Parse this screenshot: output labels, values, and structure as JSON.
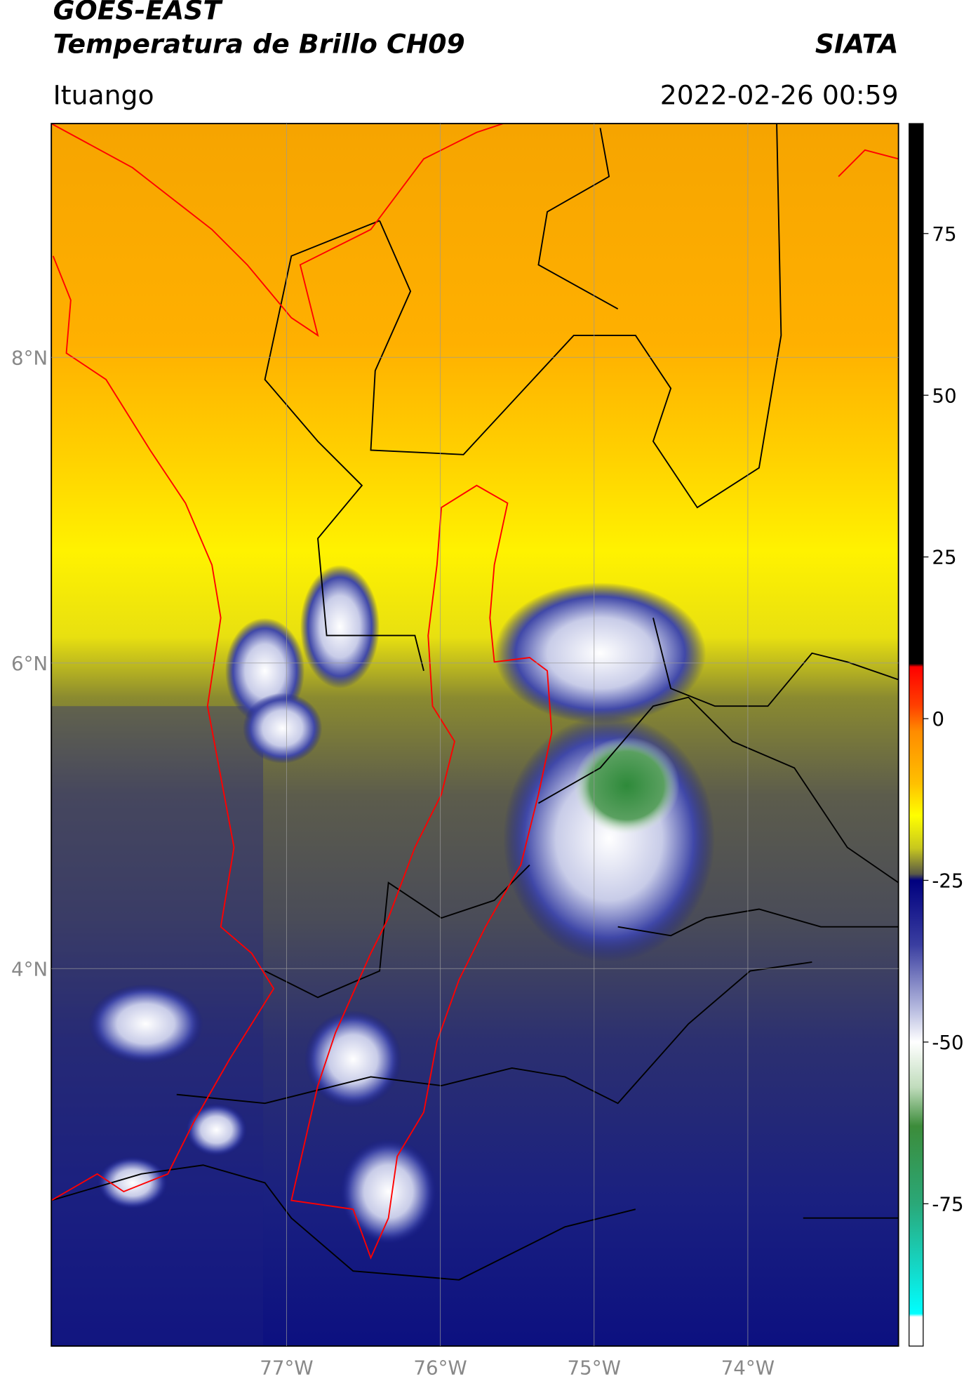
{
  "header": {
    "title": "GOES-EAST",
    "subtitle": "Temperatura de Brillo CH09",
    "source": "SIATA",
    "location": "Ituango",
    "datetime": "2022-02-26 00:59"
  },
  "map": {
    "lon_range": [
      -78.53,
      -73.02
    ],
    "lat_range": [
      1.53,
      9.53
    ],
    "grid": true,
    "lat_ticks": [
      {
        "value": 8,
        "label": "8°N"
      },
      {
        "value": 6,
        "label": "6°N"
      },
      {
        "value": 4,
        "label": "4°N"
      }
    ],
    "lon_ticks": [
      {
        "value": -77,
        "label": "77°W"
      },
      {
        "value": -76,
        "label": "76°W"
      },
      {
        "value": -75,
        "label": "75°W"
      },
      {
        "value": -74,
        "label": "74°W"
      }
    ]
  },
  "colorbar": {
    "range": [
      -97,
      92
    ],
    "ticks": [
      75,
      50,
      25,
      0,
      -25,
      -50,
      -75
    ],
    "colormap": [
      {
        "value": 92,
        "color": "#000000"
      },
      {
        "value": 8.5,
        "color": "#000000"
      },
      {
        "value": 8,
        "color": "#ff0000"
      },
      {
        "value": 2,
        "color": "#ff4000"
      },
      {
        "value": -2,
        "color": "#ff8c00"
      },
      {
        "value": -10,
        "color": "#ffc000"
      },
      {
        "value": -15,
        "color": "#ffff00"
      },
      {
        "value": -20,
        "color": "#c8c81e"
      },
      {
        "value": -24,
        "color": "#5a5a46"
      },
      {
        "value": -25,
        "color": "#00007f"
      },
      {
        "value": -35,
        "color": "#3a3ea0"
      },
      {
        "value": -45,
        "color": "#b8bce0"
      },
      {
        "value": -50,
        "color": "#ffffff"
      },
      {
        "value": -57,
        "color": "#c0dcbc"
      },
      {
        "value": -63,
        "color": "#3c8c3a"
      },
      {
        "value": -75,
        "color": "#2aa878"
      },
      {
        "value": -85,
        "color": "#14d8c8"
      },
      {
        "value": -92,
        "color": "#00ffff"
      },
      {
        "value": -92.5,
        "color": "#ffffff"
      },
      {
        "value": -97,
        "color": "#ffffff"
      }
    ]
  }
}
